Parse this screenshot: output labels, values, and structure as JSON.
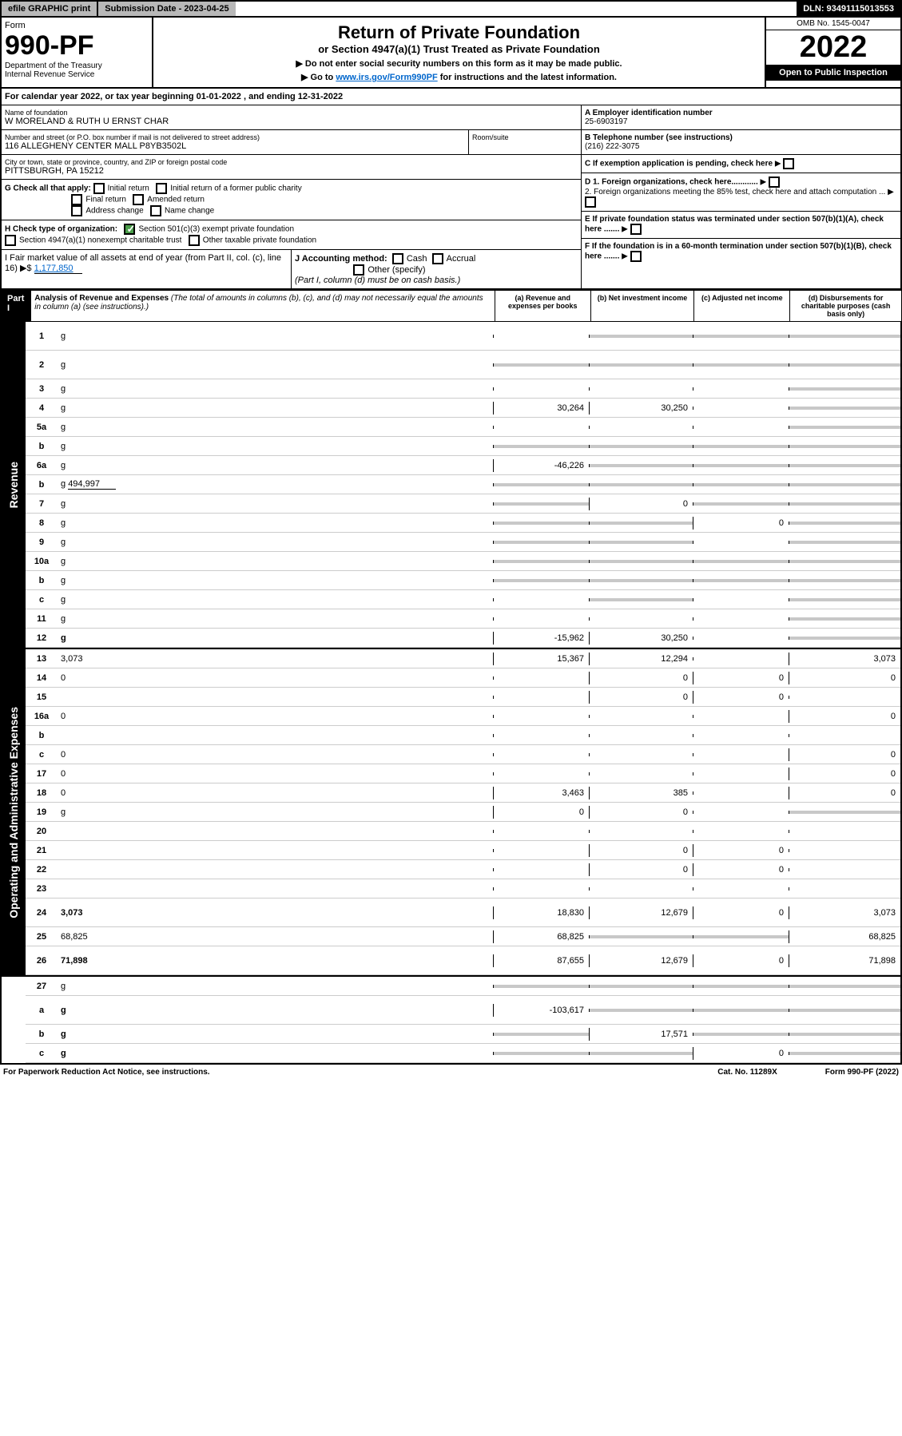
{
  "topbar": {
    "efile": "efile GRAPHIC print",
    "sub_label": "Submission Date - 2023-04-25",
    "dln": "DLN: 93491115013553"
  },
  "header": {
    "form_word": "Form",
    "form_no": "990-PF",
    "dept": "Department of the Treasury",
    "irs": "Internal Revenue Service",
    "title": "Return of Private Foundation",
    "subtitle": "or Section 4947(a)(1) Trust Treated as Private Foundation",
    "note1": "▶ Do not enter social security numbers on this form as it may be made public.",
    "note2_pre": "▶ Go to ",
    "note2_link": "www.irs.gov/Form990PF",
    "note2_post": " for instructions and the latest information.",
    "omb": "OMB No. 1545-0047",
    "year": "2022",
    "open": "Open to Public Inspection"
  },
  "calyear": "For calendar year 2022, or tax year beginning 01-01-2022                          , and ending 12-31-2022",
  "info": {
    "name_label": "Name of foundation",
    "name": "W MORELAND & RUTH U ERNST CHAR",
    "addr_label": "Number and street (or P.O. box number if mail is not delivered to street address)",
    "addr": "116 ALLEGHENY CENTER MALL P8YB3502L",
    "room_label": "Room/suite",
    "city_label": "City or town, state or province, country, and ZIP or foreign postal code",
    "city": "PITTSBURGH, PA  15212",
    "a_label": "A Employer identification number",
    "a_val": "25-6903197",
    "b_label": "B Telephone number (see instructions)",
    "b_val": "(216) 222-3075",
    "c_label": "C If exemption application is pending, check here",
    "d1": "D 1. Foreign organizations, check here............",
    "d2": "2. Foreign organizations meeting the 85% test, check here and attach computation ...",
    "e": "E  If private foundation status was terminated under section 507(b)(1)(A), check here .......",
    "f": "F  If the foundation is in a 60-month termination under section 507(b)(1)(B), check here .......",
    "g_label": "G Check all that apply:",
    "g_opts": [
      "Initial return",
      "Initial return of a former public charity",
      "Final return",
      "Amended return",
      "Address change",
      "Name change"
    ],
    "h_label": "H Check type of organization:",
    "h_opts": [
      "Section 501(c)(3) exempt private foundation",
      "Section 4947(a)(1) nonexempt charitable trust",
      "Other taxable private foundation"
    ],
    "i_label": "I Fair market value of all assets at end of year (from Part II, col. (c), line 16) ▶$",
    "i_val": "1,177,850",
    "j_label": "J Accounting method:",
    "j_opts": [
      "Cash",
      "Accrual",
      "Other (specify)"
    ],
    "j_note": "(Part I, column (d) must be on cash basis.)"
  },
  "part1": {
    "label": "Part I",
    "title": "Analysis of Revenue and Expenses",
    "title_note": "(The total of amounts in columns (b), (c), and (d) may not necessarily equal the amounts in column (a) (see instructions).)",
    "col_a": "(a)  Revenue and expenses per books",
    "col_b": "(b)  Net investment income",
    "col_c": "(c)  Adjusted net income",
    "col_d": "(d)  Disbursements for charitable purposes (cash basis only)"
  },
  "sides": {
    "revenue": "Revenue",
    "opex": "Operating and Administrative Expenses"
  },
  "rows": [
    {
      "n": "1",
      "d": "g",
      "a": "",
      "b": "g",
      "c": "g",
      "tall": true
    },
    {
      "n": "2",
      "d": "g",
      "a": "g",
      "b": "g",
      "c": "g",
      "tall": true,
      "bold_partial": true
    },
    {
      "n": "3",
      "d": "g",
      "a": "",
      "b": "",
      "c": ""
    },
    {
      "n": "4",
      "d": "g",
      "a": "30,264",
      "b": "30,250",
      "c": ""
    },
    {
      "n": "5a",
      "d": "g",
      "a": "",
      "b": "",
      "c": ""
    },
    {
      "n": "b",
      "d": "g",
      "a": "g",
      "b": "g",
      "c": "g"
    },
    {
      "n": "6a",
      "d": "g",
      "a": "-46,226",
      "b": "g",
      "c": "g"
    },
    {
      "n": "b",
      "d": "g",
      "inline": "494,997",
      "a": "g",
      "b": "g",
      "c": "g"
    },
    {
      "n": "7",
      "d": "g",
      "a": "g",
      "b": "0",
      "c": "g"
    },
    {
      "n": "8",
      "d": "g",
      "a": "g",
      "b": "g",
      "c": "0"
    },
    {
      "n": "9",
      "d": "g",
      "a": "g",
      "b": "g",
      "c": ""
    },
    {
      "n": "10a",
      "d": "g",
      "a": "g",
      "b": "g",
      "c": "g"
    },
    {
      "n": "b",
      "d": "g",
      "a": "g",
      "b": "g",
      "c": "g"
    },
    {
      "n": "c",
      "d": "g",
      "a": "",
      "b": "g",
      "c": ""
    },
    {
      "n": "11",
      "d": "g",
      "a": "",
      "b": "",
      "c": ""
    },
    {
      "n": "12",
      "d": "g",
      "a": "-15,962",
      "b": "30,250",
      "c": "",
      "bold": true
    }
  ],
  "oprows": [
    {
      "n": "13",
      "d": "3,073",
      "a": "15,367",
      "b": "12,294",
      "c": ""
    },
    {
      "n": "14",
      "d": "0",
      "a": "",
      "b": "0",
      "c": "0"
    },
    {
      "n": "15",
      "d": "",
      "a": "",
      "b": "0",
      "c": "0"
    },
    {
      "n": "16a",
      "d": "0",
      "a": "",
      "b": "",
      "c": ""
    },
    {
      "n": "b",
      "d": "",
      "a": "",
      "b": "",
      "c": ""
    },
    {
      "n": "c",
      "d": "0",
      "a": "",
      "b": "",
      "c": ""
    },
    {
      "n": "17",
      "d": "0",
      "a": "",
      "b": "",
      "c": ""
    },
    {
      "n": "18",
      "d": "0",
      "a": "3,463",
      "b": "385",
      "c": ""
    },
    {
      "n": "19",
      "d": "g",
      "a": "0",
      "b": "0",
      "c": ""
    },
    {
      "n": "20",
      "d": "",
      "a": "",
      "b": "",
      "c": ""
    },
    {
      "n": "21",
      "d": "",
      "a": "",
      "b": "0",
      "c": "0"
    },
    {
      "n": "22",
      "d": "",
      "a": "",
      "b": "0",
      "c": "0"
    },
    {
      "n": "23",
      "d": "",
      "a": "",
      "b": "",
      "c": ""
    },
    {
      "n": "24",
      "d": "3,073",
      "a": "18,830",
      "b": "12,679",
      "c": "0",
      "bold": true,
      "tall": true
    },
    {
      "n": "25",
      "d": "68,825",
      "a": "68,825",
      "b": "g",
      "c": "g"
    },
    {
      "n": "26",
      "d": "71,898",
      "a": "87,655",
      "b": "12,679",
      "c": "0",
      "bold": true,
      "tall": true
    }
  ],
  "netrows": [
    {
      "n": "27",
      "d": "g",
      "a": "g",
      "b": "g",
      "c": "g"
    },
    {
      "n": "a",
      "d": "g",
      "a": "-103,617",
      "b": "g",
      "c": "g",
      "bold": true,
      "tall": true
    },
    {
      "n": "b",
      "d": "g",
      "a": "g",
      "b": "17,571",
      "c": "g",
      "bold": true
    },
    {
      "n": "c",
      "d": "g",
      "a": "g",
      "b": "g",
      "c": "0",
      "bold": true
    }
  ],
  "footer": {
    "left": "For Paperwork Reduction Act Notice, see instructions.",
    "mid": "Cat. No. 11289X",
    "right": "Form 990-PF (2022)"
  },
  "colors": {
    "grey": "#c8c8c8",
    "black": "#000000",
    "link": "#0066cc",
    "check": "#4a9d4a"
  }
}
